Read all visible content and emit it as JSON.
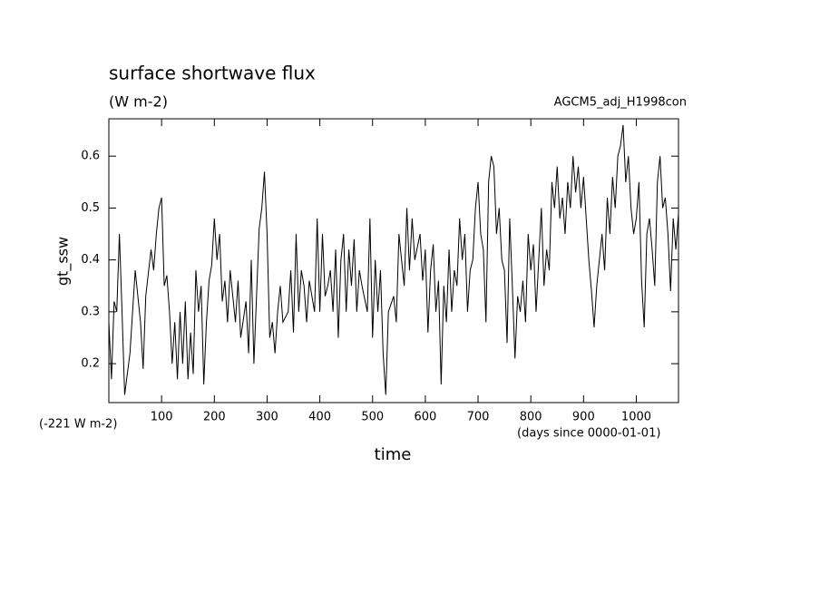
{
  "chart_data": {
    "type": "line",
    "title": "surface shortwave flux",
    "subtitle": "(W m-2)",
    "run_label": "AGCM5_adj_H1998con",
    "y_label": "gt_ssw",
    "x_label": "time",
    "offset_label": "(-221 W m-2)",
    "x_units": "(days since 0000-01-01)",
    "xlim": [
      0,
      1080
    ],
    "ylim": [
      0.125,
      0.672
    ],
    "xticks": [
      100,
      200,
      300,
      400,
      500,
      600,
      700,
      800,
      900,
      1000
    ],
    "yticks": [
      0.2,
      0.3,
      0.4,
      0.5,
      0.6
    ],
    "color": "#000000",
    "x": [
      0,
      5,
      10,
      15,
      20,
      25,
      30,
      35,
      40,
      45,
      50,
      55,
      60,
      65,
      70,
      80,
      85,
      90,
      95,
      100,
      105,
      110,
      115,
      120,
      125,
      130,
      135,
      140,
      145,
      150,
      155,
      160,
      165,
      170,
      175,
      180,
      185,
      190,
      195,
      200,
      205,
      210,
      215,
      220,
      225,
      230,
      240,
      245,
      250,
      260,
      265,
      270,
      275,
      280,
      285,
      290,
      295,
      300,
      305,
      310,
      315,
      320,
      325,
      330,
      340,
      345,
      350,
      355,
      360,
      365,
      370,
      375,
      380,
      390,
      395,
      400,
      405,
      410,
      415,
      420,
      425,
      430,
      435,
      440,
      445,
      450,
      455,
      460,
      465,
      470,
      475,
      480,
      490,
      495,
      500,
      505,
      510,
      515,
      520,
      525,
      530,
      540,
      545,
      550,
      555,
      560,
      565,
      570,
      575,
      580,
      590,
      595,
      600,
      605,
      610,
      615,
      620,
      625,
      630,
      635,
      640,
      645,
      650,
      655,
      660,
      665,
      670,
      675,
      680,
      685,
      690,
      695,
      700,
      705,
      710,
      715,
      720,
      725,
      730,
      735,
      740,
      745,
      750,
      755,
      760,
      765,
      770,
      775,
      780,
      785,
      790,
      795,
      800,
      805,
      810,
      815,
      820,
      825,
      830,
      835,
      840,
      845,
      850,
      855,
      860,
      865,
      870,
      875,
      880,
      885,
      890,
      895,
      900,
      905,
      910,
      915,
      920,
      925,
      930,
      935,
      940,
      945,
      950,
      955,
      960,
      965,
      970,
      975,
      980,
      985,
      990,
      995,
      1000,
      1005,
      1010,
      1015,
      1020,
      1025,
      1030,
      1035,
      1040,
      1045,
      1050,
      1055,
      1060,
      1065,
      1070,
      1075,
      1080
    ],
    "values": [
      0.28,
      0.17,
      0.32,
      0.3,
      0.45,
      0.3,
      0.14,
      0.18,
      0.22,
      0.3,
      0.38,
      0.33,
      0.28,
      0.19,
      0.33,
      0.42,
      0.38,
      0.45,
      0.5,
      0.52,
      0.35,
      0.37,
      0.3,
      0.2,
      0.28,
      0.17,
      0.3,
      0.2,
      0.32,
      0.17,
      0.26,
      0.18,
      0.38,
      0.3,
      0.35,
      0.16,
      0.28,
      0.36,
      0.39,
      0.48,
      0.4,
      0.45,
      0.32,
      0.36,
      0.28,
      0.38,
      0.28,
      0.36,
      0.25,
      0.32,
      0.22,
      0.4,
      0.2,
      0.33,
      0.46,
      0.5,
      0.57,
      0.45,
      0.25,
      0.28,
      0.22,
      0.3,
      0.35,
      0.28,
      0.3,
      0.38,
      0.26,
      0.45,
      0.3,
      0.38,
      0.35,
      0.28,
      0.36,
      0.3,
      0.48,
      0.3,
      0.45,
      0.33,
      0.35,
      0.38,
      0.3,
      0.42,
      0.25,
      0.4,
      0.45,
      0.3,
      0.42,
      0.35,
      0.44,
      0.3,
      0.38,
      0.35,
      0.3,
      0.48,
      0.25,
      0.4,
      0.3,
      0.38,
      0.22,
      0.14,
      0.3,
      0.33,
      0.28,
      0.45,
      0.4,
      0.35,
      0.5,
      0.38,
      0.48,
      0.4,
      0.45,
      0.36,
      0.42,
      0.26,
      0.38,
      0.43,
      0.3,
      0.36,
      0.16,
      0.35,
      0.28,
      0.42,
      0.3,
      0.38,
      0.35,
      0.48,
      0.4,
      0.45,
      0.3,
      0.38,
      0.4,
      0.5,
      0.55,
      0.45,
      0.42,
      0.28,
      0.55,
      0.6,
      0.58,
      0.45,
      0.5,
      0.4,
      0.38,
      0.24,
      0.48,
      0.35,
      0.21,
      0.33,
      0.3,
      0.36,
      0.28,
      0.45,
      0.38,
      0.43,
      0.3,
      0.4,
      0.5,
      0.35,
      0.42,
      0.38,
      0.55,
      0.5,
      0.58,
      0.48,
      0.52,
      0.45,
      0.55,
      0.5,
      0.6,
      0.53,
      0.58,
      0.5,
      0.56,
      0.48,
      0.4,
      0.34,
      0.27,
      0.35,
      0.4,
      0.45,
      0.38,
      0.52,
      0.45,
      0.56,
      0.5,
      0.6,
      0.62,
      0.66,
      0.55,
      0.6,
      0.5,
      0.45,
      0.48,
      0.55,
      0.36,
      0.27,
      0.45,
      0.48,
      0.42,
      0.35,
      0.55,
      0.6,
      0.5,
      0.52,
      0.45,
      0.34,
      0.48,
      0.42,
      0.49
    ]
  }
}
